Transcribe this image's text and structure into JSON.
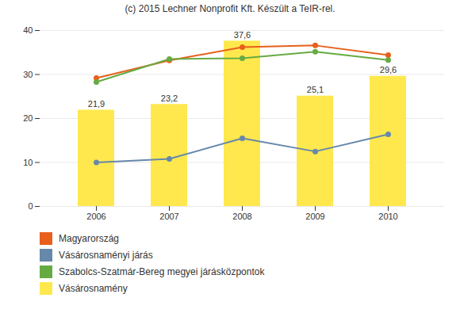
{
  "chart_data": {
    "type": "bar",
    "title": "(c) 2015 Lechner Nonprofit Kft. Készült a TeIR-rel.",
    "categories": [
      "2006",
      "2007",
      "2008",
      "2009",
      "2010"
    ],
    "series": [
      {
        "name": "Magyarország",
        "type": "line",
        "marker": "circle",
        "color": "#E8601C",
        "values": [
          29.2,
          33.2,
          36.2,
          36.6,
          34.4
        ]
      },
      {
        "name": "Vásárosnaményi járás",
        "type": "line",
        "marker": "circle",
        "color": "#6688AA",
        "values": [
          10.0,
          10.8,
          15.5,
          12.5,
          16.4
        ]
      },
      {
        "name": "Szabolcs-Szatmár-Bereg megyei járásközpontok",
        "type": "line",
        "marker": "circle",
        "color": "#66AA44",
        "values": [
          28.3,
          33.5,
          33.7,
          35.2,
          33.3
        ]
      },
      {
        "name": "Vásárosnamény",
        "type": "bar",
        "color": "#FFE84D",
        "values": [
          21.9,
          23.2,
          37.6,
          25.1,
          29.6
        ],
        "data_labels": true,
        "value_labels": [
          "21,9",
          "23,2",
          "37,6",
          "25,1",
          "29,6"
        ]
      }
    ],
    "ylim": [
      0,
      40
    ],
    "yticks": [
      0,
      10,
      20,
      30,
      40
    ],
    "grid": true,
    "legend": "bottom"
  }
}
